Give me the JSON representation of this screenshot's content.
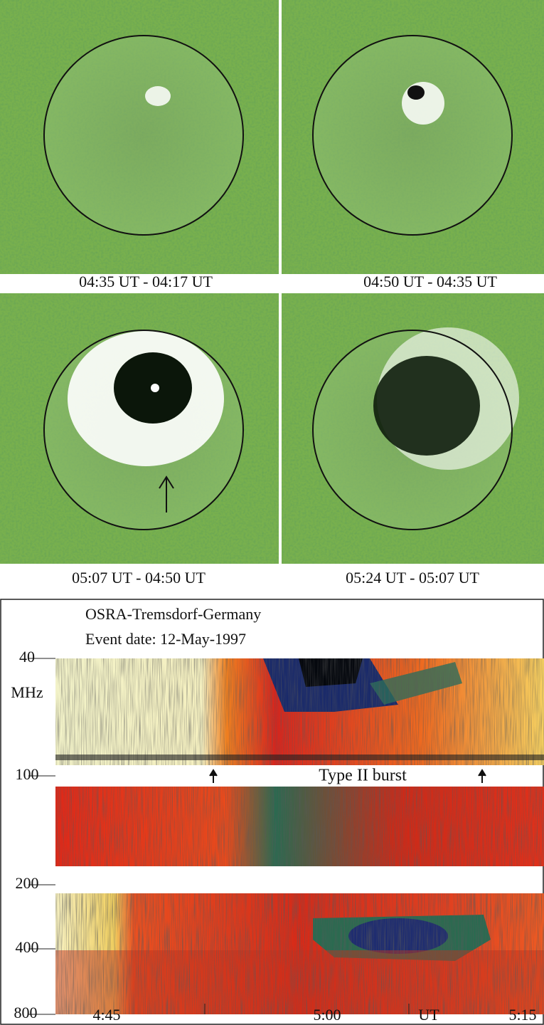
{
  "panels": [
    {
      "caption": "04:35 UT - 04:17 UT"
    },
    {
      "caption": "04:50 UT - 04:35 UT"
    },
    {
      "caption": "05:07 UT - 04:50 UT"
    },
    {
      "caption": "05:24 UT - 05:07 UT"
    }
  ],
  "spectrogram": {
    "title": "OSRA-Tremsdorf-Germany",
    "subtitle": "Event date: 12-May-1997",
    "y_unit": "MHz",
    "y_ticks": [
      "40",
      "100",
      "200",
      "400",
      "800"
    ],
    "x_ticks": [
      "4:45",
      "5:00",
      "5:15"
    ],
    "x_unit": "UT",
    "annotation": "Type II burst"
  }
}
